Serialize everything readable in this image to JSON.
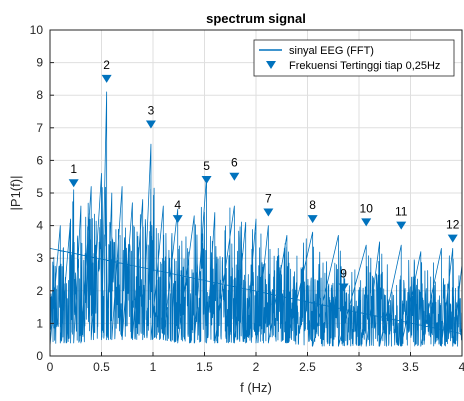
{
  "chart_data": {
    "type": "line",
    "title": "spectrum signal",
    "xlabel": "f (Hz)",
    "ylabel": "|P1(f)|",
    "xlim": [
      0,
      4
    ],
    "ylim": [
      0,
      10
    ],
    "xticks": [
      "0",
      "0.5",
      "1",
      "1.5",
      "2",
      "2.5",
      "3",
      "3.5",
      "4"
    ],
    "yticks": [
      "0",
      "1",
      "2",
      "3",
      "4",
      "5",
      "6",
      "7",
      "8",
      "9",
      "10"
    ],
    "grid": true,
    "legend_position": "top-right",
    "colors": {
      "signal": "#0072bd",
      "markers": "#0072bd",
      "grid": "#dfdfdf",
      "axes": "#262626"
    },
    "series": [
      {
        "name": "sinyal EEG (FFT)",
        "kind": "line",
        "x": [
          0.0,
          0.1,
          0.2,
          0.23,
          0.3,
          0.4,
          0.5,
          0.55,
          0.6,
          0.7,
          0.8,
          0.9,
          0.98,
          1.1,
          1.24,
          1.4,
          1.52,
          1.6,
          1.79,
          1.9,
          2.0,
          2.12,
          2.3,
          2.55,
          2.8,
          3.07,
          3.2,
          3.41,
          3.6,
          3.8,
          3.91,
          4.0
        ],
        "upper": [
          3.3,
          4.0,
          4.2,
          5.1,
          4.6,
          5.2,
          5.6,
          8.1,
          5.0,
          5.2,
          4.7,
          4.8,
          6.5,
          4.6,
          4.5,
          4.3,
          5.5,
          4.4,
          4.6,
          4.1,
          4.2,
          4.0,
          3.7,
          3.8,
          3.7,
          3.4,
          3.5,
          3.4,
          3.2,
          3.3,
          3.3,
          2.8
        ],
        "lower": [
          0.3,
          0.4,
          0.4,
          0.4,
          0.4,
          0.5,
          0.5,
          0.5,
          0.5,
          0.5,
          0.5,
          0.5,
          0.5,
          0.5,
          0.4,
          0.4,
          0.4,
          0.4,
          0.4,
          0.4,
          0.4,
          0.4,
          0.4,
          0.3,
          0.3,
          0.3,
          0.3,
          0.3,
          0.3,
          0.3,
          0.3,
          0.3
        ]
      },
      {
        "name": "Frekuensi Tertinggi tiap 0,25Hz",
        "kind": "markers",
        "points": [
          {
            "label": "1",
            "x": 0.23,
            "y": 5.3
          },
          {
            "label": "2",
            "x": 0.55,
            "y": 8.5
          },
          {
            "label": "3",
            "x": 0.98,
            "y": 7.1
          },
          {
            "label": "4",
            "x": 1.24,
            "y": 4.2
          },
          {
            "label": "5",
            "x": 1.52,
            "y": 5.4
          },
          {
            "label": "6",
            "x": 1.79,
            "y": 5.5
          },
          {
            "label": "7",
            "x": 2.12,
            "y": 4.4
          },
          {
            "label": "8",
            "x": 2.55,
            "y": 4.2
          },
          {
            "label": "9",
            "x": 2.85,
            "y": 2.1
          },
          {
            "label": "10",
            "x": 3.07,
            "y": 4.1
          },
          {
            "label": "11",
            "x": 3.41,
            "y": 4.0
          },
          {
            "label": "12",
            "x": 3.91,
            "y": 3.6
          }
        ]
      }
    ]
  }
}
